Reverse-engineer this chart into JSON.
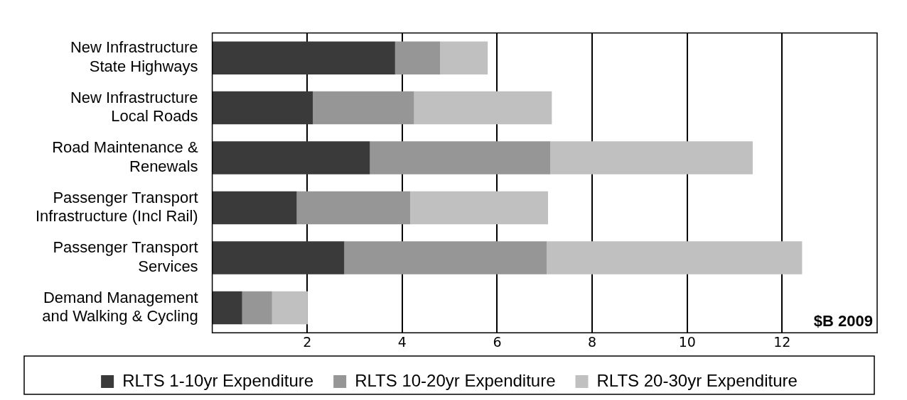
{
  "chart_data": {
    "type": "bar",
    "orientation": "horizontal",
    "stacked": true,
    "categories": [
      "New Infrastructure\nState Highways",
      "New Infrastructure\nLocal Roads",
      "Road Maintenance &\nRenewals",
      "Passenger Transport\nInfrastructure (Incl Rail)",
      "Passenger Transport\nServices",
      "Demand Management\nand Walking & Cycling"
    ],
    "series": [
      {
        "name": "RLTS 1-10yr Expenditure",
        "color": "#3a3a3a",
        "values": [
          3.85,
          2.12,
          3.32,
          1.78,
          2.78,
          0.63
        ]
      },
      {
        "name": "RLTS 10-20yr Expenditure",
        "color": "#969696",
        "values": [
          0.95,
          2.13,
          3.8,
          2.39,
          4.26,
          0.63
        ]
      },
      {
        "name": "RLTS 20-30yr Expenditure",
        "color": "#c0c0c0",
        "values": [
          1.0,
          2.9,
          4.26,
          2.9,
          5.38,
          0.75
        ]
      }
    ],
    "xlim": [
      0,
      14
    ],
    "xticks": [
      2,
      4,
      6,
      8,
      10,
      12
    ],
    "grid": "x",
    "legend": "bottom",
    "annotations": [
      "$B 2009"
    ]
  }
}
